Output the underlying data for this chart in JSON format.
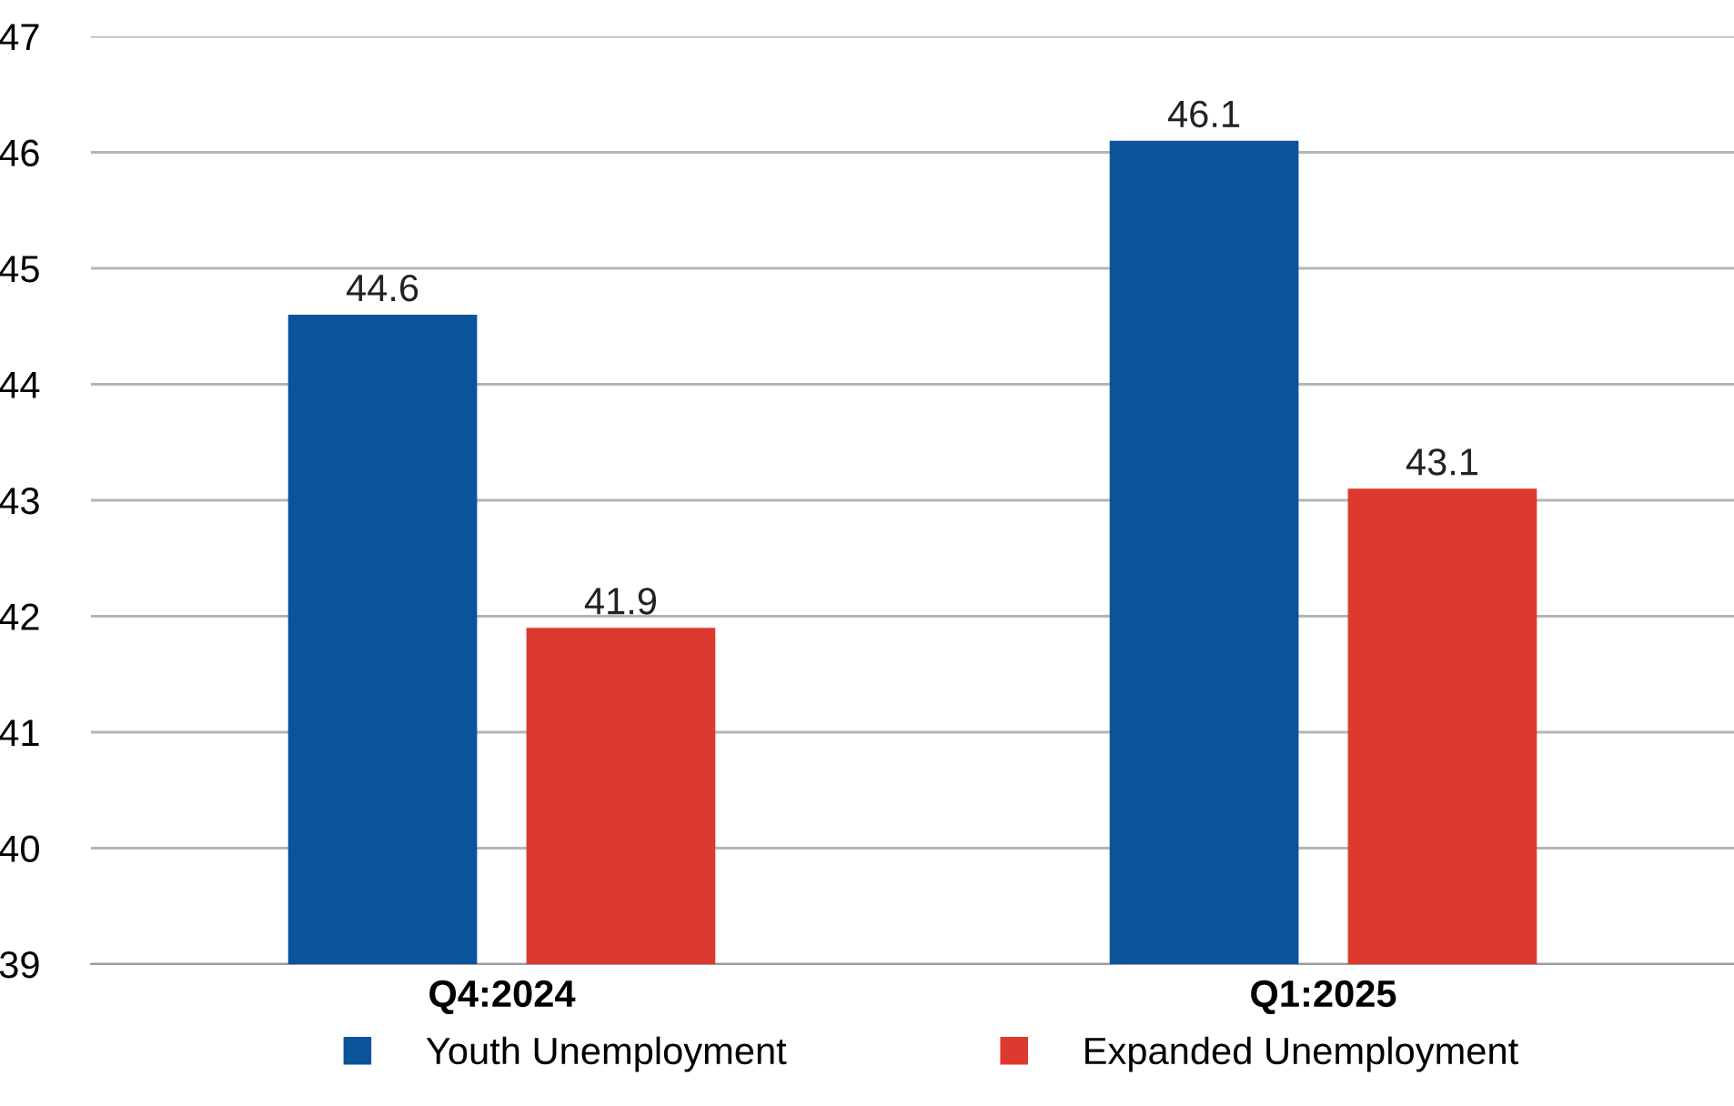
{
  "chart_data": {
    "type": "bar",
    "categories": [
      "Q4:2024",
      "Q1:2025"
    ],
    "series": [
      {
        "name": "Youth Unemployment",
        "color": "#0b539b",
        "values": [
          44.6,
          46.1
        ]
      },
      {
        "name": "Expanded Unemployment",
        "color": "#dc3a2e",
        "values": [
          41.9,
          43.1
        ]
      }
    ],
    "ylim": [
      39,
      47
    ],
    "yticks": [
      39,
      40,
      41,
      42,
      43,
      44,
      45,
      46,
      47
    ],
    "grid": "y",
    "legend": "bottom",
    "data_labels": true
  }
}
